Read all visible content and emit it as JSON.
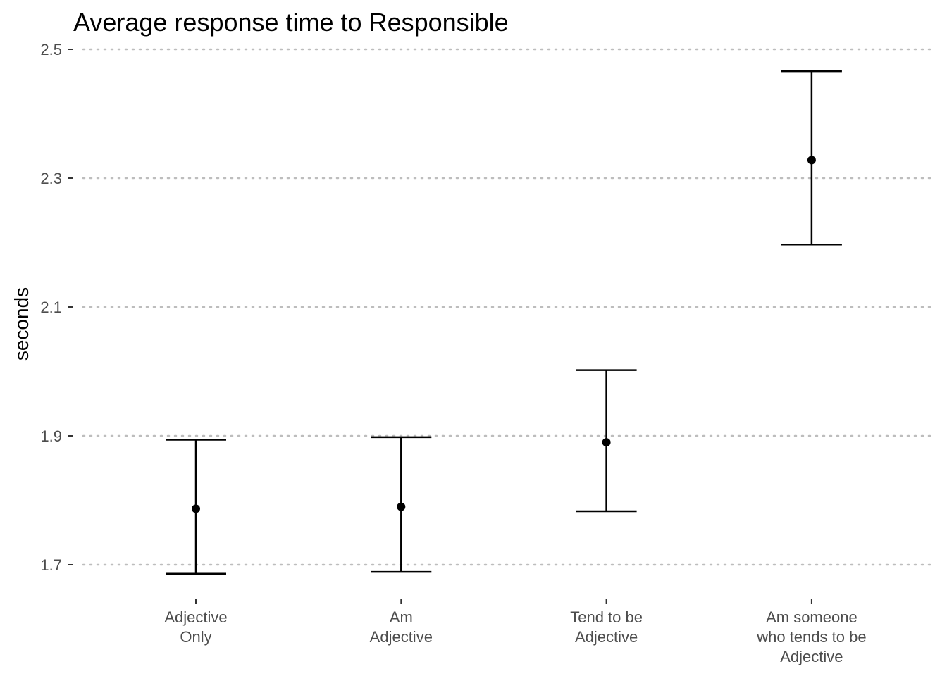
{
  "chart_data": {
    "type": "scatter",
    "title": "Average response time to Responsible",
    "xlabel": "",
    "ylabel": "seconds",
    "categories": [
      [
        "Adjective",
        "Only"
      ],
      [
        "Am",
        "Adjective"
      ],
      [
        "Tend to be",
        "Adjective"
      ],
      [
        "Am someone",
        "who tends to be",
        "Adjective"
      ]
    ],
    "series": [
      {
        "values": [
          1.787,
          1.79,
          1.89,
          2.328
        ],
        "lower": [
          1.686,
          1.689,
          1.783,
          2.197
        ],
        "upper": [
          1.894,
          1.898,
          2.002,
          2.466
        ]
      }
    ],
    "yticks": [
      "1.7",
      "1.9",
      "2.1",
      "2.3",
      "2.5"
    ],
    "ylim": [
      1.658,
      2.515
    ],
    "grid": "horizontal-dotted",
    "legend": "none",
    "colors": {
      "marks": "#000000",
      "grid": "#bdbdbd",
      "tick_labels": "#4d4d4d"
    }
  }
}
